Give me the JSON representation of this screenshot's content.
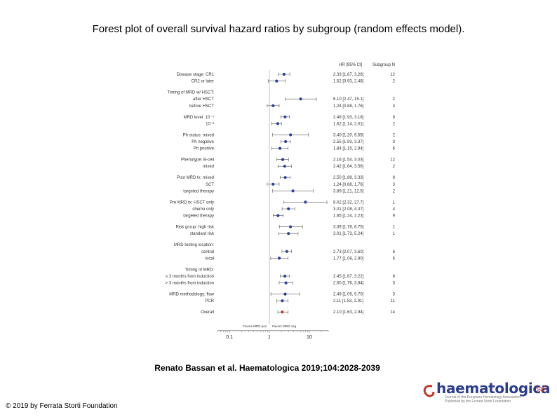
{
  "slide": {
    "title": "Forest plot of overall survival hazard ratios by subgroup (random effects model).",
    "citation": "Renato Bassan et al. Haematologica 2019;104:2028-2039",
    "copyright": "© 2019 by Ferrata Storti Foundation",
    "logo_text": "haematologica",
    "logo_subtext": "Journal of the European Hematology Association Published by the Ferrata Storti Foundation"
  },
  "chart_data": {
    "type": "forest",
    "title": "",
    "xlabel": "",
    "x_scale": "log",
    "xlim": [
      0.05,
      30
    ],
    "xticks": [
      0.1,
      1,
      10
    ],
    "xtick_labels": [
      "0.1",
      "1",
      "10"
    ],
    "reference_line": 1,
    "favors_left": "Favors MRD pos",
    "favors_right": "Favors MRD neg",
    "column_headers": {
      "ci": "HR [95% CI]",
      "n": "Subgroup N"
    },
    "overall_color": "#c0392b",
    "point_color": "#2a3f9d",
    "rows": [
      {
        "label": "Disease stage: CR1",
        "hr": 2.33,
        "lo": 1.67,
        "hi": 3.26,
        "ci_text": "2.33 [1.67, 3.26]",
        "n": "12"
      },
      {
        "label": "CR2 or later",
        "hr": 1.52,
        "lo": 0.93,
        "hi": 2.48,
        "ci_text": "1.52 [0.93, 2.48]",
        "n": "2"
      },
      {
        "gap": true
      },
      {
        "label": "Timing of MRD w/ HSCT:",
        "header": true
      },
      {
        "label": "after HSCT",
        "hr": 6.1,
        "lo": 2.47,
        "hi": 15.1,
        "ci_text": "6.10 [2.47, 15.1]",
        "n": "2"
      },
      {
        "label": "before HSCT",
        "hr": 1.24,
        "lo": 0.88,
        "hi": 1.76,
        "ci_text": "1.24 [0.88, 1.76]",
        "n": "3"
      },
      {
        "gap": true
      },
      {
        "label": "MRD level: 10⁻⁴",
        "hr": 2.48,
        "lo": 1.93,
        "hi": 3.18,
        "ci_text": "2.48 [1.93, 3.18]",
        "n": "9"
      },
      {
        "label": "10⁻³",
        "hr": 1.62,
        "lo": 1.14,
        "hi": 2.01,
        "ci_text": "1.62 [1.14, 2.01]",
        "n": "2"
      },
      {
        "gap": true
      },
      {
        "label": "Ph status: mixed",
        "hr": 3.4,
        "lo": 1.2,
        "hi": 9.59,
        "ci_text": "3.40 [1.20, 9.59]",
        "n": "2"
      },
      {
        "label": "Ph negative",
        "hr": 2.55,
        "lo": 1.93,
        "hi": 3.37,
        "ci_text": "2.55 [1.93, 3.37]",
        "n": "3"
      },
      {
        "label": "Ph positive",
        "hr": 1.84,
        "lo": 1.15,
        "hi": 2.94,
        "ci_text": "1.84 [1.15, 2.94]",
        "n": "6"
      },
      {
        "gap": true
      },
      {
        "label": "Phenotype: B-cell",
        "hr": 2.16,
        "lo": 1.54,
        "hi": 3.03,
        "ci_text": "2.16 [1.54, 3.03]",
        "n": "12"
      },
      {
        "label": "mixed",
        "hr": 2.42,
        "lo": 1.64,
        "hi": 3.56,
        "ci_text": "2.42 [1.64, 3.56]",
        "n": "2"
      },
      {
        "gap": true
      },
      {
        "label": "Post MRD tx: mixed",
        "hr": 2.5,
        "lo": 1.88,
        "hi": 3.33,
        "ci_text": "2.50 [1.88, 3.33]",
        "n": "8"
      },
      {
        "label": "SCT",
        "hr": 1.24,
        "lo": 0.88,
        "hi": 1.76,
        "ci_text": "1.24 [0.88, 1.76]",
        "n": "3"
      },
      {
        "label": "targeted therapy",
        "hr": 3.89,
        "lo": 1.21,
        "hi": 12.5,
        "ci_text": "3.89 [1.21, 12.5]",
        "n": "2"
      },
      {
        "gap": true
      },
      {
        "label": "Pre MRD tx: HSCT only",
        "hr": 8.02,
        "lo": 2.32,
        "hi": 27.7,
        "ci_text": "8.02 [2.32, 27.7]",
        "n": "1"
      },
      {
        "label": "chemo only",
        "hr": 3.01,
        "lo": 2.08,
        "hi": 4.37,
        "ci_text": "3.01 [2.08, 4.37]",
        "n": "4"
      },
      {
        "label": "targeted therapy",
        "hr": 1.65,
        "lo": 1.24,
        "hi": 2.23,
        "ci_text": "1.65 [1.24, 2.23]",
        "n": "9"
      },
      {
        "gap": true
      },
      {
        "label": "Risk group: high risk",
        "hr": 3.39,
        "lo": 1.78,
        "hi": 6.75,
        "ci_text": "3.39 [1.78, 6.75]",
        "n": "1"
      },
      {
        "label": "standard risk",
        "hr": 3.01,
        "lo": 1.73,
        "hi": 5.24,
        "ci_text": "3.01 [1.73, 5.24]",
        "n": "1"
      },
      {
        "gap": true
      },
      {
        "label": "MRD testing location:",
        "header": true
      },
      {
        "label": "central",
        "hr": 2.73,
        "lo": 2.07,
        "hi": 3.6,
        "ci_text": "2.73 [2.07, 3.60]",
        "n": "6"
      },
      {
        "label": "local",
        "hr": 1.77,
        "lo": 1.08,
        "hi": 2.9,
        "ci_text": "1.77 [1.08, 2.90]",
        "n": "6"
      },
      {
        "gap": true
      },
      {
        "label": "Timing of MRD:",
        "header": true
      },
      {
        "label": "≤ 3 months from induction",
        "hr": 2.45,
        "lo": 1.87,
        "hi": 3.22,
        "ci_text": "2.45 [1.87, 3.22]",
        "n": "8"
      },
      {
        "label": "> 3 months from induction",
        "hr": 2.6,
        "lo": 1.76,
        "hi": 3.84,
        "ci_text": "2.60 [1.76, 3.84]",
        "n": "3"
      },
      {
        "gap": true
      },
      {
        "label": "MRD methodology: flow",
        "hr": 2.49,
        "lo": 1.09,
        "hi": 5.7,
        "ci_text": "2.49 [1.09, 5.70]",
        "n": "3"
      },
      {
        "label": "PCR",
        "hr": 2.11,
        "lo": 1.53,
        "hi": 2.91,
        "ci_text": "2.11 [1.53, 2.91]",
        "n": "11"
      },
      {
        "gap": true
      },
      {
        "label": "Overall",
        "hr": 2.1,
        "lo": 1.63,
        "hi": 2.94,
        "ci_text": "2.10 [1.63, 2.94]",
        "n": "14",
        "overall": true
      }
    ]
  }
}
